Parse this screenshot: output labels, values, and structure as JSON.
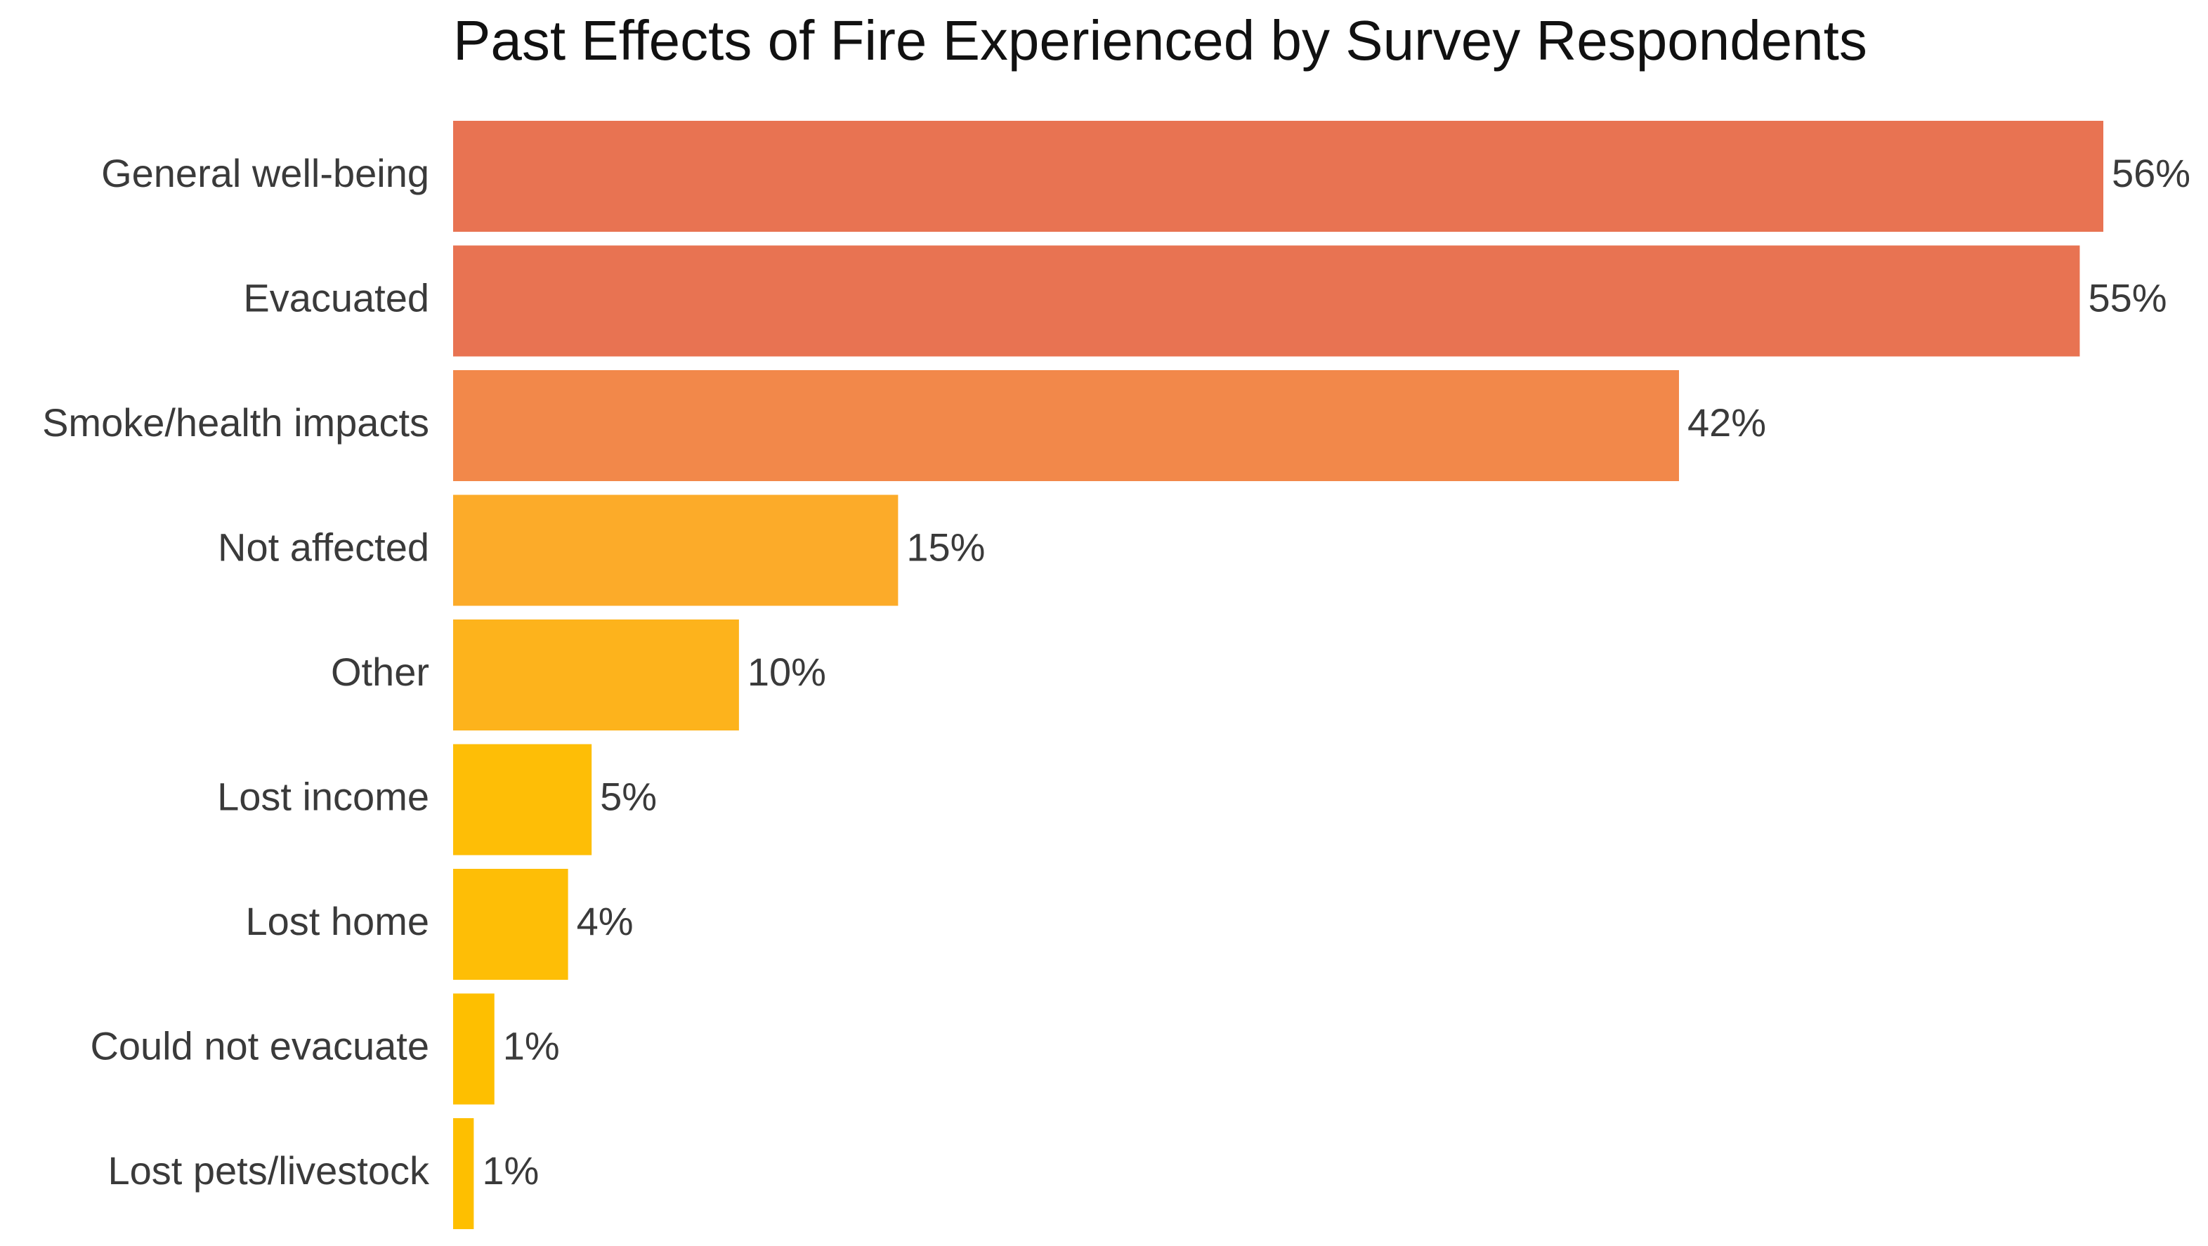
{
  "chart_data": {
    "type": "bar",
    "orientation": "horizontal",
    "title": "Past Effects of Fire Experienced by Survey Respondents",
    "categories": [
      "General well-being",
      "Evacuated",
      "Smoke/health impacts",
      "Not affected",
      "Other",
      "Lost income",
      "Lost home",
      "Could not evacuate",
      "Lost pets/livestock"
    ],
    "values": [
      56,
      55.2,
      41.6,
      15.1,
      9.7,
      4.7,
      3.9,
      1.4,
      0.7
    ],
    "value_labels": [
      "56%",
      "55%",
      "42%",
      "15%",
      "10%",
      "5%",
      "4%",
      "1%",
      "1%"
    ],
    "colors": [
      "#e87352",
      "#e87352",
      "#f2884a",
      "#fcab29",
      "#fdb31c",
      "#febe06",
      "#febe06",
      "#febf00",
      "#febf00"
    ]
  }
}
